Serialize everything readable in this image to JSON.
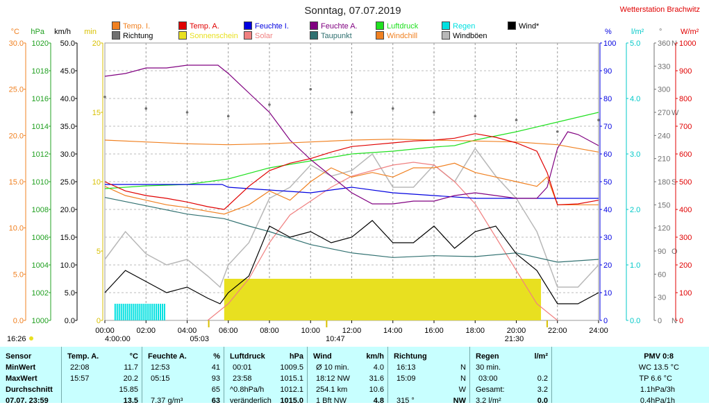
{
  "title": "Sonntag, 07.07.2019",
  "station": "Wetterstation Brachwitz",
  "colors": {
    "temp_i": "#f08020",
    "temp_a": "#e00000",
    "feuchte_i": "#0000e0",
    "feuchte_a": "#800080",
    "luftdruck": "#20e020",
    "regen": "#00e0e0",
    "wind": "#000000",
    "richtung": "#707070",
    "sonnenschein": "#e8e020",
    "solar": "#f08080",
    "taupunkt": "#307070",
    "windchill": "#f08020",
    "windboeen": "#b8b8b8",
    "table_bg": "#c8ffff"
  },
  "legend": [
    {
      "label": "Temp. I.",
      "color": "#f08020"
    },
    {
      "label": "Temp. A.",
      "color": "#e00000"
    },
    {
      "label": "Feuchte I.",
      "color": "#0000e0"
    },
    {
      "label": "Feuchte A.",
      "color": "#800080"
    },
    {
      "label": "Luftdruck",
      "color": "#20e020"
    },
    {
      "label": "Regen",
      "color": "#00e0e0"
    },
    {
      "label": "Wind*",
      "color": "#000000"
    },
    {
      "label": "Richtung",
      "color": "#707070"
    },
    {
      "label": "Sonnenschein",
      "color": "#e8e020"
    },
    {
      "label": "Solar",
      "color": "#f08080"
    },
    {
      "label": "Taupunkt",
      "color": "#307070"
    },
    {
      "label": "Windchill",
      "color": "#f08020"
    },
    {
      "label": "Windböen",
      "color": "#b8b8b8"
    }
  ],
  "chart_data": {
    "type": "line",
    "title": "Sonntag, 07.07.2019",
    "x_ticks": [
      "00:00",
      "02:00",
      "04:00",
      "06:00",
      "08:00",
      "10:00",
      "12:00",
      "14:00",
      "16:00",
      "18:00",
      "20:00",
      "22:00",
      "24:00"
    ],
    "x_range": [
      0,
      24
    ],
    "axes": {
      "temp_c": {
        "unit": "°C",
        "range": [
          0,
          30
        ],
        "ticks": [
          "0.0",
          "5.0",
          "10.0",
          "15.0",
          "20.0",
          "25.0",
          "30.0"
        ]
      },
      "pressure_hpa": {
        "unit": "hPa",
        "range": [
          1000,
          1020
        ],
        "ticks": [
          "1000",
          "1002",
          "1004",
          "1006",
          "1008",
          "1010",
          "1012",
          "1014",
          "1016",
          "1018",
          "1020"
        ]
      },
      "wind_kmh": {
        "unit": "km/h",
        "range": [
          0,
          50
        ],
        "ticks": [
          "0.0",
          "5.0",
          "10.0",
          "15.0",
          "20.0",
          "25.0",
          "30.0",
          "35.0",
          "40.0",
          "45.0",
          "50.0"
        ]
      },
      "sun_min": {
        "unit": "min",
        "range": [
          0,
          20
        ],
        "ticks": [
          "0",
          "5",
          "10",
          "15",
          "20"
        ]
      },
      "humidity_pct": {
        "unit": "%",
        "range": [
          0,
          100
        ],
        "ticks": [
          "0",
          "10",
          "20",
          "30",
          "40",
          "50",
          "60",
          "70",
          "80",
          "90",
          "100"
        ]
      },
      "rain_lm2": {
        "unit": "l/m²",
        "range": [
          0,
          5
        ],
        "ticks": [
          "0.0",
          "1.0",
          "2.0",
          "3.0",
          "4.0",
          "5.0"
        ]
      },
      "direction_deg": {
        "unit": "°",
        "range": [
          0,
          360
        ],
        "ticks": [
          "0",
          "30",
          "60",
          "90",
          "120",
          "150",
          "180",
          "210",
          "240",
          "270",
          "300",
          "330",
          "360"
        ],
        "labels": [
          "N",
          "",
          "",
          "O",
          "",
          "",
          "S",
          "",
          "",
          "W",
          "",
          "",
          "N"
        ]
      },
      "solar_wm2": {
        "unit": "W/m²",
        "range": [
          0,
          1000
        ],
        "ticks": [
          "0",
          "100",
          "200",
          "300",
          "400",
          "500",
          "600",
          "700",
          "800",
          "900",
          "1000"
        ]
      }
    },
    "series": [
      {
        "name": "Temp. I.",
        "axis": "temp_c",
        "x": [
          0,
          2,
          4,
          6,
          8,
          10,
          12,
          14,
          16,
          18,
          20,
          22,
          24
        ],
        "y": [
          19.5,
          19.3,
          19.1,
          19.0,
          19.1,
          19.3,
          19.5,
          19.6,
          19.5,
          19.4,
          19.3,
          19.0,
          18.2
        ]
      },
      {
        "name": "Temp. A.",
        "axis": "temp_c",
        "x": [
          0,
          1,
          2,
          3,
          4,
          5,
          5.8,
          7,
          8,
          9,
          10,
          11,
          12,
          13,
          14,
          15,
          16,
          17,
          18,
          19,
          20,
          21,
          21.5,
          22,
          23,
          24
        ],
        "y": [
          15.0,
          14.0,
          13.5,
          13.2,
          12.8,
          12.3,
          12.0,
          14.5,
          16.2,
          17.0,
          17.5,
          18.2,
          18.8,
          19.0,
          19.2,
          19.4,
          19.5,
          19.7,
          20.2,
          19.8,
          19.2,
          18.3,
          16.0,
          12.5,
          12.6,
          13.0
        ]
      },
      {
        "name": "Feuchte I.",
        "axis": "humidity_pct",
        "x": [
          0,
          2,
          4,
          5.7,
          6,
          8,
          10,
          12,
          14,
          16,
          18,
          20,
          22,
          24
        ],
        "y": [
          49,
          49,
          49,
          49,
          48,
          47,
          46,
          48,
          46,
          45,
          44,
          44,
          44,
          44
        ]
      },
      {
        "name": "Feuchte A.",
        "axis": "humidity_pct",
        "x": [
          0,
          1,
          2,
          3,
          4,
          5,
          5.5,
          6,
          7,
          8,
          8.5,
          9,
          10,
          11,
          12,
          13,
          14,
          15,
          16,
          17,
          18,
          19,
          20,
          21,
          21.5,
          22,
          22.5,
          23,
          24
        ],
        "y": [
          88,
          89,
          91,
          91,
          92,
          92,
          92,
          89,
          82,
          75,
          70,
          65,
          58,
          52,
          46,
          42,
          42,
          43,
          43,
          45,
          46,
          45,
          44,
          44,
          48,
          62,
          68,
          67,
          63
        ]
      },
      {
        "name": "Luftdruck",
        "axis": "pressure_hpa",
        "x": [
          0,
          2,
          4,
          6,
          8,
          10,
          12,
          14,
          16,
          17,
          18,
          20,
          22,
          24
        ],
        "y": [
          1009.5,
          1009.7,
          1009.8,
          1010.2,
          1011.0,
          1011.5,
          1012.0,
          1012.2,
          1012.5,
          1012.6,
          1013.0,
          1013.6,
          1014.3,
          1015.0
        ]
      },
      {
        "name": "Taupunkt",
        "axis": "temp_c",
        "x": [
          0,
          2,
          4,
          5.8,
          7,
          8,
          10,
          12,
          14,
          16,
          18,
          20,
          22,
          24
        ],
        "y": [
          13.3,
          12.4,
          11.5,
          11.0,
          10.2,
          9.6,
          8.2,
          7.3,
          6.8,
          7.0,
          6.9,
          7.3,
          6.3,
          6.6
        ]
      },
      {
        "name": "Windchill",
        "axis": "temp_c",
        "x": [
          0,
          1,
          2,
          3,
          4,
          5,
          5.8,
          7,
          8,
          9,
          10,
          11,
          12,
          13,
          14,
          15,
          16,
          17,
          18,
          19,
          20,
          21,
          21.5,
          22,
          24
        ],
        "y": [
          14.5,
          13.5,
          13.0,
          12.5,
          12.2,
          11.8,
          11.5,
          12.5,
          14.0,
          13.0,
          15.0,
          16.5,
          15.5,
          16.0,
          15.5,
          16.5,
          16.5,
          17.0,
          16.0,
          15.5,
          15.0,
          14.5,
          15.5,
          12.5,
          12.5
        ]
      },
      {
        "name": "Wind*",
        "axis": "wind_kmh",
        "x": [
          0,
          1,
          2,
          3,
          4,
          5,
          5.6,
          6,
          7,
          8,
          9,
          10,
          11,
          12,
          13,
          14,
          15,
          16,
          17,
          18,
          19,
          20,
          21,
          22,
          23,
          24
        ],
        "y": [
          5,
          9,
          7,
          5,
          6,
          4,
          3,
          5,
          8,
          17,
          15,
          16,
          14,
          15,
          18,
          14,
          14,
          17,
          13,
          16,
          17,
          12,
          9,
          3,
          3,
          5
        ]
      },
      {
        "name": "Windböen",
        "axis": "wind_kmh",
        "x": [
          0,
          1,
          2,
          3,
          4,
          5,
          5.6,
          6,
          7,
          8,
          9,
          10,
          11,
          12,
          13,
          14,
          15,
          16,
          17,
          18,
          19,
          20,
          21,
          22,
          23,
          24
        ],
        "y": [
          11,
          16,
          12,
          10,
          11,
          8,
          6,
          10,
          14,
          22,
          24,
          28,
          26,
          27,
          30,
          24,
          24,
          28,
          25,
          31,
          26,
          22,
          16,
          6,
          6,
          10
        ]
      },
      {
        "name": "Richtung",
        "axis": "direction_deg",
        "x": [
          0,
          2,
          4,
          6,
          8,
          10,
          12,
          14,
          16,
          18,
          20,
          22,
          24
        ],
        "y": [
          290,
          275,
          270,
          265,
          280,
          300,
          270,
          275,
          270,
          265,
          260,
          245,
          260
        ]
      },
      {
        "name": "Solar",
        "axis": "solar_wm2",
        "x": [
          5,
          6,
          7,
          8,
          9,
          10,
          11,
          12,
          13,
          14,
          15,
          16,
          17,
          18,
          19,
          20,
          21,
          22
        ],
        "y": [
          0,
          60,
          150,
          280,
          380,
          430,
          480,
          520,
          540,
          560,
          570,
          560,
          500,
          420,
          300,
          180,
          60,
          0
        ]
      },
      {
        "name": "Sonnenschein",
        "axis": "sun_min",
        "x": [
          5.8,
          21.2
        ],
        "y": [
          3,
          3
        ]
      },
      {
        "name": "Regen",
        "axis": "rain_lm2",
        "x": [
          0.5,
          3.0
        ],
        "y": [
          0.1,
          0.1
        ]
      }
    ],
    "markers": {
      "left_time": "16:26",
      "sunrise": "05:03",
      "dawn": "4:00:00",
      "noon": "10:47",
      "sunset": "21:30"
    }
  },
  "table": {
    "sensor": {
      "header": "Sensor",
      "rows": [
        "MinWert",
        "MaxWert",
        "Durchschnitt",
        "07.07. 23:59"
      ]
    },
    "temp": {
      "header": "Temp. A.",
      "unit": "°C",
      "rows": [
        [
          "22:08",
          "11.7"
        ],
        [
          "15:57",
          "20.2"
        ],
        [
          "",
          "15.85"
        ],
        [
          "",
          "13.5"
        ]
      ]
    },
    "feuchte": {
      "header": "Feuchte A.",
      "unit": "%",
      "rows": [
        [
          "12:53",
          "41"
        ],
        [
          "05:15",
          "93"
        ],
        [
          "",
          "65"
        ],
        [
          "7.37 g/m³",
          "63"
        ]
      ]
    },
    "druck": {
      "header": "Luftdruck",
      "unit": "hPa",
      "rows": [
        [
          "00:01",
          "1009.5"
        ],
        [
          "23:58",
          "1015.1"
        ],
        [
          "^0.8hPa/h",
          "1012.1"
        ],
        [
          "veränderlich",
          "1015.0"
        ]
      ]
    },
    "wind": {
      "header": "Wind",
      "unit": "km/h",
      "rows": [
        [
          "Ø 10 min.",
          "4.0"
        ],
        [
          "18:12  NW",
          "31.6"
        ],
        [
          "254.1 km",
          "10.6"
        ],
        [
          "1 Bft NW",
          "4.8"
        ]
      ]
    },
    "richtung": {
      "header": "Richtung",
      "rows": [
        [
          "16:13",
          "N"
        ],
        [
          "15:09",
          "N"
        ],
        [
          "",
          "W"
        ],
        [
          "315 °",
          "NW"
        ]
      ]
    },
    "regen": {
      "header": "Regen",
      "unit": "l/m²",
      "rows": [
        [
          "30 min.",
          ""
        ],
        [
          "03:00",
          "0.2"
        ],
        [
          "Gesamt:",
          "3.2"
        ],
        [
          "3.2 l/m²",
          "0.0"
        ]
      ]
    },
    "pmv": {
      "header": "PMV 0:8",
      "rows": [
        "WC 13.5 °C",
        "TP 6.6 °C",
        "1.1hPa/3h",
        "0.4hPa/1h"
      ]
    }
  }
}
